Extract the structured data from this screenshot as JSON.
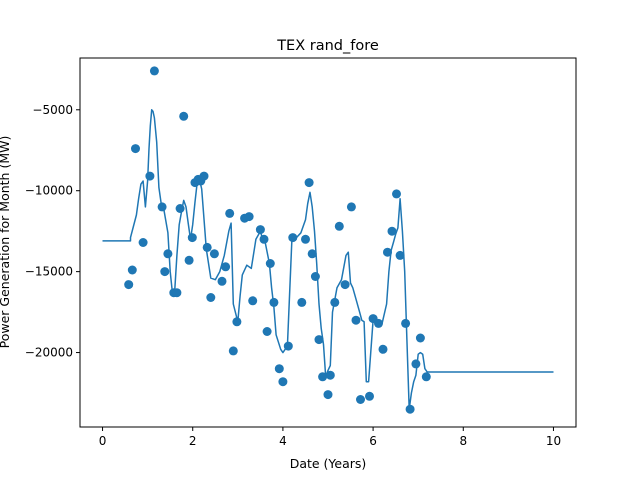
{
  "chart_data": {
    "type": "line+scatter",
    "title": "TEX rand_fore",
    "xlabel": "Date (Years)",
    "ylabel": "Power Generation for Month (MW)",
    "xlim": [
      -0.5,
      10.5
    ],
    "ylim": [
      -24600,
      -1800
    ],
    "xticks": [
      0,
      2,
      4,
      6,
      8,
      10
    ],
    "yticks": [
      -20000,
      -15000,
      -10000,
      -5000
    ],
    "grid": false,
    "colors": {
      "series": "#1f77b4",
      "axes": "#000000"
    },
    "series": [
      {
        "kind": "line",
        "x": [
          0,
          0.62,
          0.62,
          0.75,
          0.8,
          0.85,
          0.9,
          0.95,
          1.0,
          1.03,
          1.06,
          1.09,
          1.12,
          1.15,
          1.2,
          1.25,
          1.3,
          1.35,
          1.45,
          1.5,
          1.55,
          1.6,
          1.65,
          1.7,
          1.75,
          1.8,
          1.85,
          1.9,
          1.95,
          2.0,
          2.05,
          2.1,
          2.15,
          2.2,
          2.3,
          2.4,
          2.5,
          2.6,
          2.7,
          2.8,
          2.85,
          2.9,
          3.0,
          3.05,
          3.1,
          3.2,
          3.3,
          3.4,
          3.5,
          3.55,
          3.6,
          3.7,
          3.75,
          3.8,
          3.85,
          3.95,
          4.0,
          4.1,
          4.2,
          4.3,
          4.4,
          4.5,
          4.55,
          4.6,
          4.65,
          4.7,
          4.75,
          4.8,
          4.85,
          4.9,
          4.95,
          5.0,
          5.05,
          5.1,
          5.2,
          5.3,
          5.4,
          5.45,
          5.5,
          5.55,
          5.6,
          5.7,
          5.75,
          5.8,
          5.85,
          5.9,
          6.0,
          6.1,
          6.2,
          6.3,
          6.35,
          6.4,
          6.45,
          6.5,
          6.55,
          6.6,
          6.65,
          6.7,
          6.75,
          6.8,
          6.85,
          6.9,
          6.95,
          7.0,
          7.05,
          7.1,
          7.15,
          7.2,
          10
        ],
        "y": [
          -13100,
          -13100,
          -12900,
          -11500,
          -10500,
          -9600,
          -9400,
          -11000,
          -9400,
          -7400,
          -6000,
          -5000,
          -5100,
          -5500,
          -7000,
          -9800,
          -10800,
          -11000,
          -12600,
          -15000,
          -16300,
          -16200,
          -14000,
          -12100,
          -11300,
          -10600,
          -11000,
          -12000,
          -13000,
          -12100,
          -10700,
          -9500,
          -9300,
          -9900,
          -13600,
          -15400,
          -15500,
          -15000,
          -14000,
          -12500,
          -12000,
          -17000,
          -18100,
          -16500,
          -15200,
          -14600,
          -14800,
          -13000,
          -12500,
          -13000,
          -13100,
          -14500,
          -16000,
          -17200,
          -18900,
          -19800,
          -20000,
          -19600,
          -13000,
          -12900,
          -12600,
          -11800,
          -10800,
          -10100,
          -11000,
          -12500,
          -14500,
          -17000,
          -18500,
          -19500,
          -21500,
          -21100,
          -20800,
          -17500,
          -16000,
          -15500,
          -14000,
          -13800,
          -15700,
          -16000,
          -16500,
          -17500,
          -18000,
          -18100,
          -21800,
          -21800,
          -18000,
          -18300,
          -18200,
          -17000,
          -15000,
          -13700,
          -13200,
          -12700,
          -12300,
          -10500,
          -12500,
          -15000,
          -19200,
          -23500,
          -22500,
          -21800,
          -21400,
          -20100,
          -20000,
          -20100,
          -21000,
          -21200,
          -21200
        ]
      },
      {
        "kind": "scatter",
        "x": [
          0.58,
          0.66,
          0.73,
          0.9,
          1.05,
          1.15,
          1.32,
          1.38,
          1.45,
          1.58,
          1.65,
          1.72,
          1.8,
          1.92,
          1.99,
          2.05,
          2.12,
          2.18,
          2.25,
          2.32,
          2.4,
          2.48,
          2.65,
          2.73,
          2.82,
          2.9,
          2.98,
          3.15,
          3.25,
          3.33,
          3.5,
          3.58,
          3.65,
          3.72,
          3.8,
          3.92,
          4.0,
          4.12,
          4.22,
          4.42,
          4.5,
          4.58,
          4.65,
          4.72,
          4.8,
          4.88,
          5.0,
          5.05,
          5.15,
          5.25,
          5.38,
          5.52,
          5.62,
          5.72,
          5.92,
          6.0,
          6.12,
          6.22,
          6.32,
          6.42,
          6.52,
          6.6,
          6.72,
          6.82,
          6.95,
          7.05,
          7.18
        ],
        "y": [
          -15800,
          -14900,
          -7400,
          -13200,
          -9100,
          -2600,
          -11000,
          -15000,
          -13900,
          -16300,
          -16300,
          -11100,
          -5400,
          -14300,
          -12900,
          -9500,
          -9300,
          -9400,
          -9100,
          -13500,
          -16600,
          -13900,
          -15600,
          -14700,
          -11400,
          -19900,
          -18100,
          -11700,
          -11600,
          -16800,
          -12400,
          -13000,
          -18700,
          -14500,
          -16900,
          -21000,
          -21800,
          -19600,
          -12900,
          -16900,
          -13000,
          -9500,
          -13900,
          -15300,
          -19200,
          -21500,
          -22600,
          -21400,
          -16900,
          -12200,
          -15800,
          -11000,
          -18000,
          -22900,
          -22700,
          -17900,
          -18200,
          -19800,
          -13800,
          -12500,
          -10200,
          -14000,
          -18200,
          -23500,
          -20700,
          -19100,
          -21500
        ]
      }
    ]
  }
}
